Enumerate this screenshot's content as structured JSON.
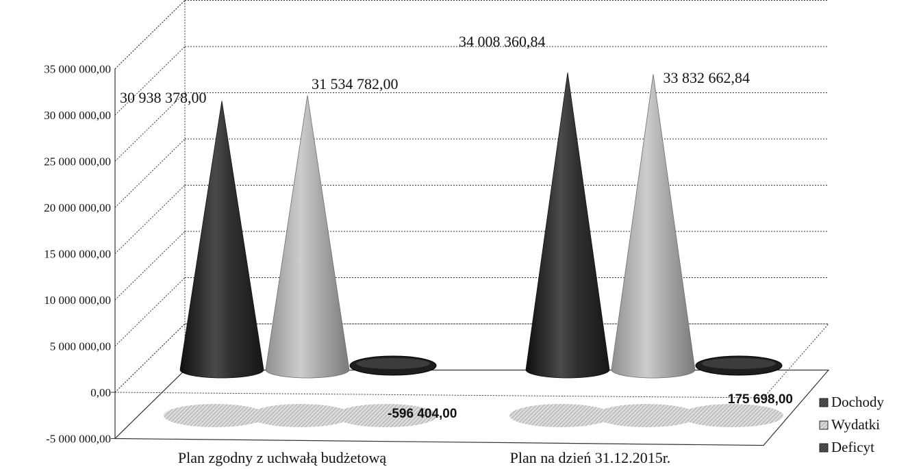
{
  "chart_data": {
    "type": "3d-cone",
    "categories": [
      "Plan zgodny z uchwałą budżetową",
      "Plan na dzień 31.12.2015r."
    ],
    "series": [
      {
        "name": "Dochody",
        "values": [
          30938378.0,
          34008360.84
        ],
        "labels": [
          "30 938 378,00",
          "34 008 360,84"
        ]
      },
      {
        "name": "Wydatki",
        "values": [
          31534782.0,
          33832662.84
        ],
        "labels": [
          "31 534 782,00",
          "33 832 662,84"
        ]
      },
      {
        "name": "Deficyt",
        "values": [
          -596404.0,
          175698.0
        ],
        "labels": [
          "-596 404,00",
          "175 698,00"
        ]
      }
    ],
    "ylim": [
      -5000000,
      35000000
    ],
    "ytick_values": [
      -5000000,
      0,
      5000000,
      10000000,
      15000000,
      20000000,
      25000000,
      30000000,
      35000000
    ],
    "ytick_labels": [
      "-5 000 000,00",
      "0,00",
      "5 000 000,00",
      "10 000 000,00",
      "15 000 000,00",
      "20 000 000,00",
      "25 000 000,00",
      "30 000 000,00",
      "35 000 000,00"
    ],
    "grid": true,
    "legend_position": "right-bottom",
    "colors": {
      "Dochody": "#2e2e2e",
      "Wydatki": "#a4a4a4",
      "Deficyt": "#3a3a3a",
      "floor_hatch": "#c8c8c8"
    }
  }
}
